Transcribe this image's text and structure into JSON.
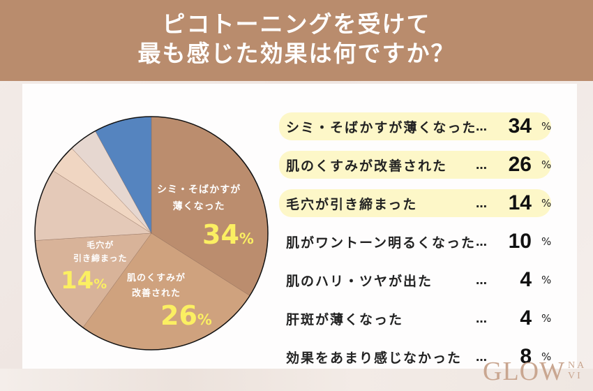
{
  "header": {
    "line1": "ピコトーニングを受けて",
    "line2": "最も感じた効果は何ですか？"
  },
  "pie_labels": {
    "slice0": {
      "line1": "シミ・そばかすが",
      "line2": "薄くなった",
      "pct": "34",
      "sym": "%"
    },
    "slice1": {
      "line1": "肌のくすみが",
      "line2": "改善された",
      "pct": "26",
      "sym": "%"
    },
    "slice2": {
      "line1": "毛穴が",
      "line2": "引き締まった",
      "pct": "14",
      "sym": "%"
    }
  },
  "legend": {
    "dots": "…",
    "unit": "%",
    "items": [
      {
        "label": "シミ・そばかすが薄くなった",
        "value": "34",
        "highlight": true
      },
      {
        "label": "肌のくすみが改善された",
        "value": "26",
        "highlight": true
      },
      {
        "label": "毛穴が引き締まった",
        "value": "14",
        "highlight": true
      },
      {
        "label": "肌がワントーン明るくなった",
        "value": "10",
        "highlight": false
      },
      {
        "label": "肌のハリ・ツヤが出た",
        "value": "4",
        "highlight": false
      },
      {
        "label": "肝斑が薄くなった",
        "value": "4",
        "highlight": false
      },
      {
        "label": "効果をあまり感じなかった",
        "value": "8",
        "highlight": false
      }
    ]
  },
  "logo": {
    "main": "GLOW",
    "sub1": "NA",
    "sub2": "VI"
  },
  "colors": {
    "header_bg": "#b98c6d",
    "slice_colors": [
      "#bb8d6e",
      "#cfa27e",
      "#d8b399",
      "#e4c9b8",
      "#f0d6c2",
      "#e6d7d0",
      "#5584bf"
    ],
    "pct_yellow": "#fbef62",
    "highlight_bg": "#fdf7c8"
  },
  "chart_data": {
    "type": "pie",
    "title": "ピコトーニングを受けて最も感じた効果は何ですか？",
    "categories": [
      "シミ・そばかすが薄くなった",
      "肌のくすみが改善された",
      "毛穴が引き締まった",
      "肌がワントーン明るくなった",
      "肌のハリ・ツヤが出た",
      "肝斑が薄くなった",
      "効果をあまり感じなかった"
    ],
    "values": [
      34,
      26,
      14,
      10,
      4,
      4,
      8
    ],
    "unit": "%",
    "start_angle": "12 o'clock, clockwise",
    "legend_position": "right"
  }
}
